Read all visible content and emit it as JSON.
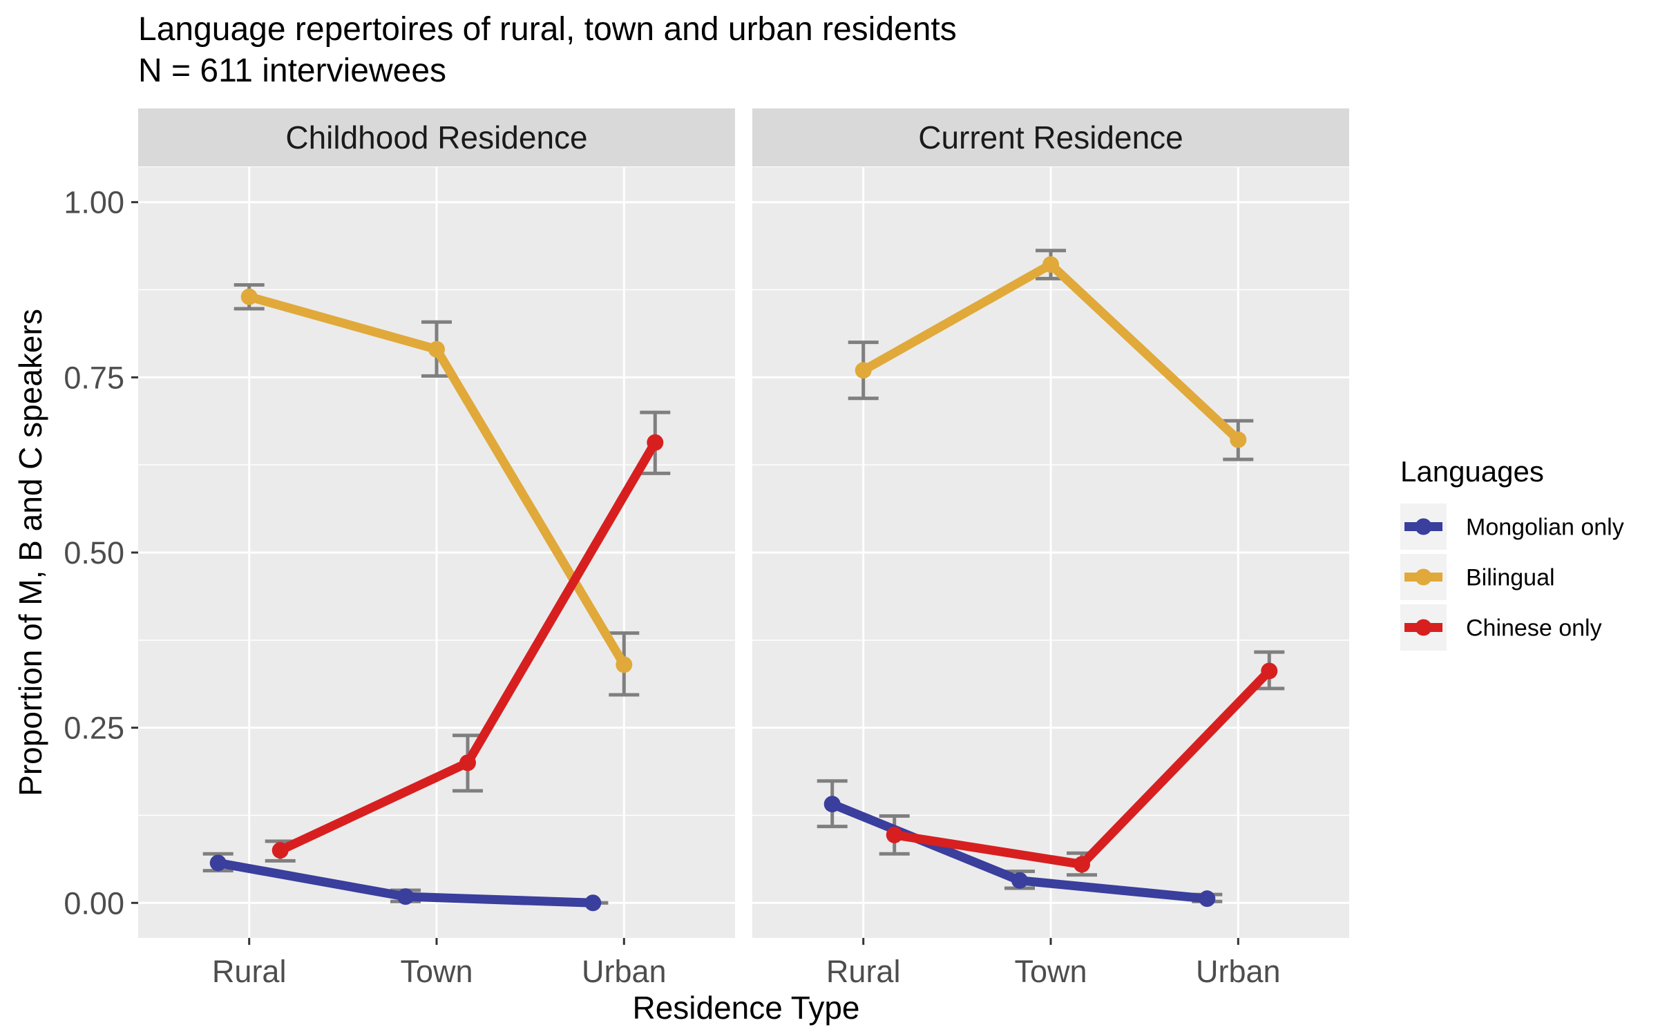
{
  "chart_data": {
    "type": "line",
    "title": "Language repertoires of rural, town and urban residents",
    "subtitle": "N = 611 interviewees",
    "xlabel": "Residence Type",
    "ylabel": "Proportion of M, B and C speakers",
    "ylim": [
      -0.05,
      1.05
    ],
    "yticks": [
      "0.00",
      "0.25",
      "0.50",
      "0.75",
      "1.00"
    ],
    "ytick_values": [
      0,
      0.25,
      0.5,
      0.75,
      1.0
    ],
    "categories": [
      "Rural",
      "Town",
      "Urban"
    ],
    "grid": true,
    "legend": {
      "title": "Languages",
      "position": "right",
      "entries": [
        "Mongolian only",
        "Bilingual",
        "Chinese only"
      ]
    },
    "series_colors": {
      "Mongolian only": "#3a3e9c",
      "Bilingual": "#e0a93a",
      "Chinese only": "#d81f1f"
    },
    "panels": [
      {
        "title": "Childhood Residence",
        "series": [
          {
            "name": "Mongolian only",
            "values": [
              0.057,
              0.009,
              0.0
            ],
            "lower": [
              0.046,
              0.002,
              0.0
            ],
            "upper": [
              0.07,
              0.018,
              0.0
            ]
          },
          {
            "name": "Bilingual",
            "values": [
              0.865,
              0.79,
              0.34
            ],
            "lower": [
              0.848,
              0.752,
              0.297
            ],
            "upper": [
              0.882,
              0.829,
              0.385
            ]
          },
          {
            "name": "Chinese only",
            "values": [
              0.075,
              0.2,
              0.657
            ],
            "lower": [
              0.06,
              0.16,
              0.613
            ],
            "upper": [
              0.088,
              0.239,
              0.7
            ]
          }
        ]
      },
      {
        "title": "Current Residence",
        "series": [
          {
            "name": "Mongolian only",
            "values": [
              0.141,
              0.032,
              0.006
            ],
            "lower": [
              0.109,
              0.021,
              0.002
            ],
            "upper": [
              0.174,
              0.045,
              0.012
            ]
          },
          {
            "name": "Bilingual",
            "values": [
              0.76,
              0.911,
              0.661
            ],
            "lower": [
              0.72,
              0.891,
              0.633
            ],
            "upper": [
              0.8,
              0.931,
              0.688
            ]
          },
          {
            "name": "Chinese only",
            "values": [
              0.097,
              0.055,
              0.331
            ],
            "lower": [
              0.07,
              0.04,
              0.306
            ],
            "upper": [
              0.124,
              0.071,
              0.358
            ]
          }
        ]
      }
    ]
  }
}
